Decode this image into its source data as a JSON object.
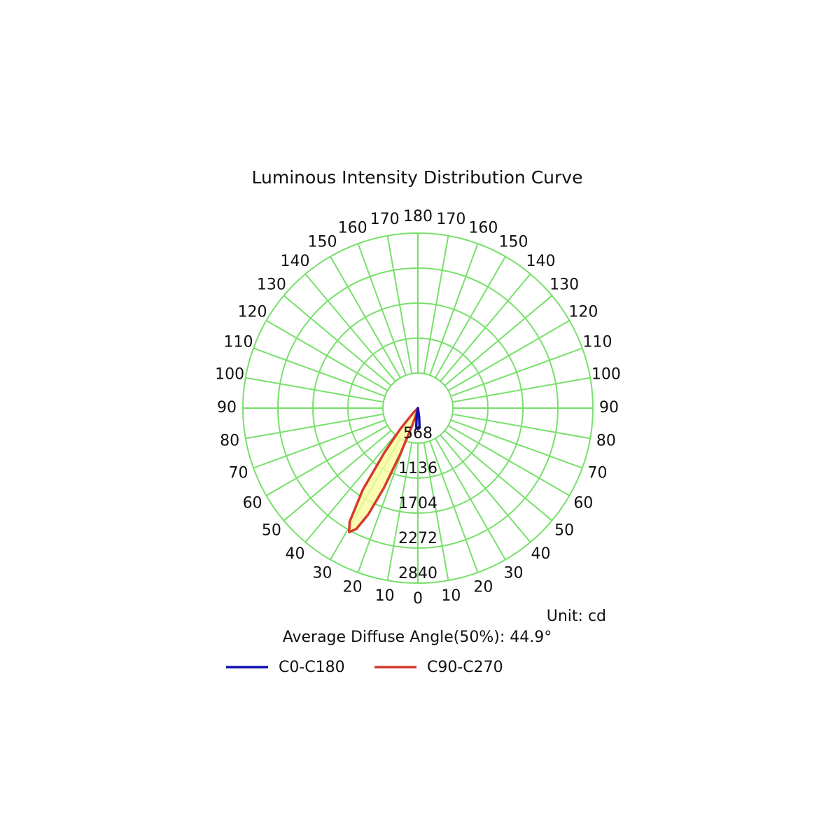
{
  "chart_data": {
    "type": "polar",
    "title": "Luminous Intensity Distribution Curve",
    "unit_label": "Unit: cd",
    "annotation": "Average Diffuse Angle(50%): 44.9°",
    "rlim": [
      0,
      2840
    ],
    "rticks": [
      568,
      1136,
      1704,
      2272,
      2840
    ],
    "angle_ticks": [
      0,
      10,
      20,
      30,
      40,
      50,
      60,
      70,
      80,
      90,
      100,
      110,
      120,
      130,
      140,
      150,
      160,
      170,
      180
    ],
    "grid": true,
    "series": [
      {
        "name": "C0-C180",
        "color": "#1010b0",
        "x": [
          -10,
          -8,
          -5,
          -3,
          0,
          3,
          5,
          8,
          10
        ],
        "values": [
          0,
          150,
          300,
          330,
          340,
          330,
          300,
          150,
          0
        ]
      },
      {
        "name": "C90-C270",
        "color": "#d63a2a",
        "fill": "#fafa9e",
        "x": [
          -50,
          -45,
          -40,
          -37,
          -34,
          -31,
          -29,
          -27,
          -25,
          -23,
          -21,
          -18,
          -15,
          -10
        ],
        "values": [
          0,
          100,
          450,
          900,
          1600,
          2150,
          2300,
          2200,
          1900,
          1400,
          800,
          300,
          100,
          0
        ]
      }
    ]
  }
}
